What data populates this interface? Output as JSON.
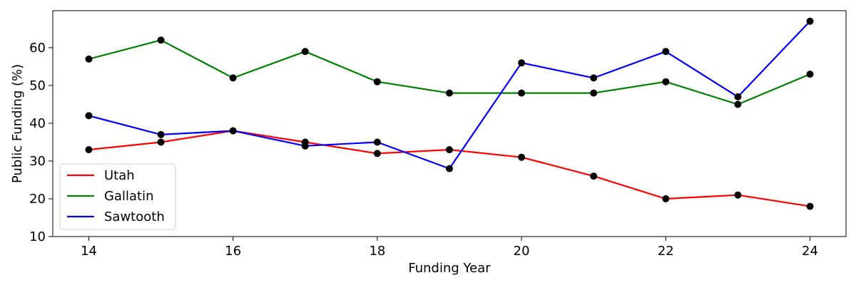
{
  "chart_data": {
    "type": "line",
    "title": "",
    "xlabel": "Funding Year",
    "ylabel": "Public Funding (%)",
    "xlim": [
      13.5,
      24.5
    ],
    "ylim": [
      10,
      69.8
    ],
    "xticks": [
      "14",
      "16",
      "18",
      "20",
      "22",
      "24"
    ],
    "yticks": [
      "10",
      "20",
      "30",
      "40",
      "50",
      "60"
    ],
    "grid": false,
    "legend_position": "lower-left",
    "x": [
      14,
      15,
      16,
      17,
      18,
      19,
      20,
      21,
      22,
      23,
      24
    ],
    "series": [
      {
        "name": "Utah",
        "color": "#ff0000",
        "values": [
          33,
          35,
          38,
          35,
          32,
          33,
          31,
          26,
          20,
          21,
          18
        ]
      },
      {
        "name": "Gallatin",
        "color": "#008000",
        "values": [
          57,
          62,
          52,
          59,
          51,
          48,
          48,
          48,
          51,
          45,
          53
        ]
      },
      {
        "name": "Sawtooth",
        "color": "#0000ff",
        "values": [
          42,
          37,
          38,
          34,
          35,
          28,
          56,
          52,
          59,
          47,
          67
        ]
      }
    ],
    "marker_color": "#000000"
  }
}
